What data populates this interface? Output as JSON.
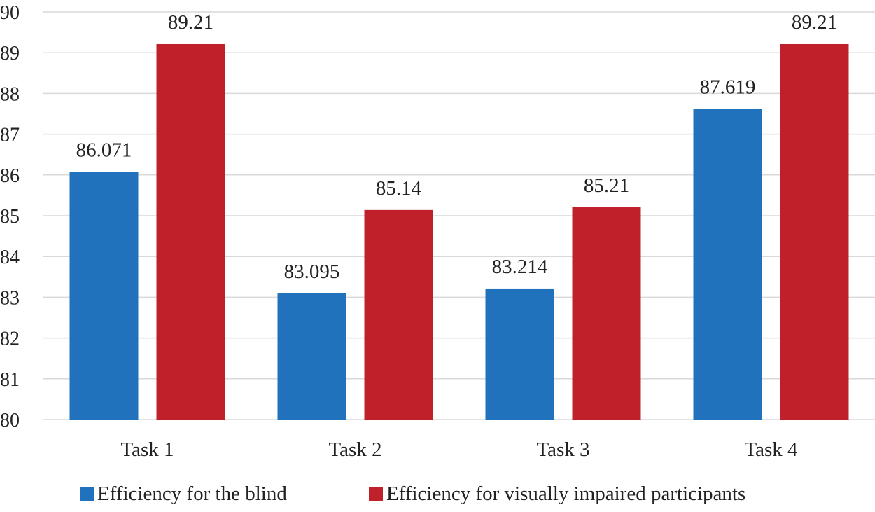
{
  "chart_data": {
    "type": "bar",
    "title": "",
    "xlabel": "",
    "ylabel": "",
    "ylim": [
      80,
      90
    ],
    "yticks": [
      80,
      81,
      82,
      83,
      84,
      85,
      86,
      87,
      88,
      89,
      90
    ],
    "grid": true,
    "legend_position": "bottom",
    "categories": [
      "Task 1",
      "Task 2",
      "Task 3",
      "Task 4"
    ],
    "series": [
      {
        "name": "Efficiency for the blind",
        "color": "#1f72bb",
        "values": [
          86.071,
          83.095,
          83.214,
          87.619
        ],
        "labels": [
          "86.071",
          "83.095",
          "83.214",
          "87.619"
        ]
      },
      {
        "name": "Efficiency for visually impaired participants",
        "color": "#c0202a",
        "values": [
          89.21,
          85.14,
          85.21,
          89.21
        ],
        "labels": [
          "89.21",
          "85.14",
          "85.21",
          "89.21"
        ]
      }
    ]
  }
}
